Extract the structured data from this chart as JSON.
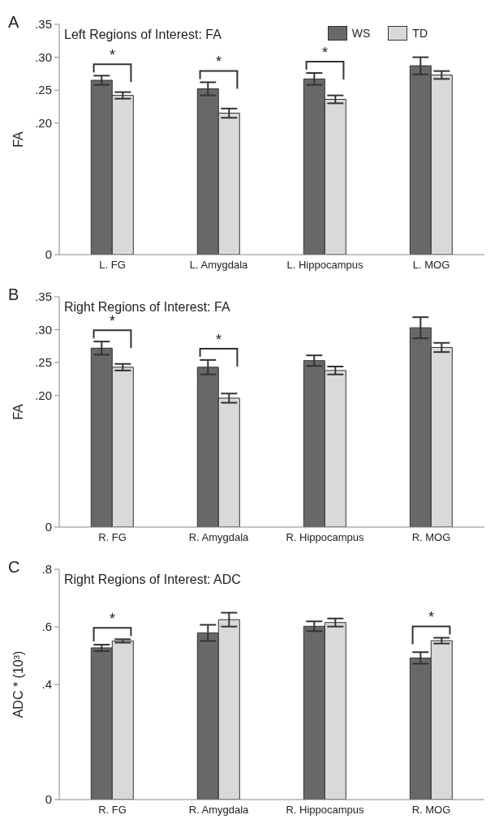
{
  "chart_data": [
    {
      "type": "bar",
      "title": "Left Regions of Interest: FA",
      "ylabel": "FA",
      "categories": [
        "L. FG",
        "L. Amygdala",
        "L. Hippocampus",
        "L. MOG"
      ],
      "series": [
        {
          "name": "WS",
          "color": "#686868",
          "values": [
            0.265,
            0.252,
            0.267,
            0.287
          ],
          "errors": [
            0.007,
            0.01,
            0.009,
            0.013
          ]
        },
        {
          "name": "TD",
          "color": "#d9d9d9",
          "values": [
            0.242,
            0.215,
            0.236,
            0.273
          ],
          "errors": [
            0.005,
            0.007,
            0.006,
            0.006
          ]
        }
      ],
      "ylim": [
        0,
        0.35
      ],
      "yticks": [
        {
          "value": 0,
          "label": "0"
        },
        {
          "value": 0.2,
          "label": ".20"
        },
        {
          "value": 0.25,
          "label": ".25"
        },
        {
          "value": 0.3,
          "label": ".30"
        },
        {
          "value": 0.35,
          "label": ".35"
        }
      ],
      "legend": "top right",
      "grid": false,
      "annotations": [
        "A",
        {
          "text": "*",
          "x": "L. FG",
          "y": 0.265
        },
        {
          "text": "*",
          "x": "L. Amygdala",
          "y": 0.252
        },
        {
          "text": "*",
          "x": "L. Hippocampus",
          "y": 0.267
        }
      ]
    },
    {
      "type": "bar",
      "title": "Right Regions of Interest: FA",
      "ylabel": "FA",
      "categories": [
        "R. FG",
        "R. Amygdala",
        "R. Hippocampus",
        "R. MOG"
      ],
      "series": [
        {
          "color": "#686868",
          "values": [
            0.272,
            0.243,
            0.253,
            0.303
          ],
          "errors": [
            0.01,
            0.011,
            0.008,
            0.016
          ]
        },
        {
          "color": "#d9d9d9",
          "values": [
            0.243,
            0.196,
            0.238,
            0.273
          ],
          "errors": [
            0.005,
            0.007,
            0.006,
            0.007
          ]
        }
      ],
      "ylim": [
        0,
        0.35
      ],
      "yticks": [
        {
          "value": 0,
          "label": "0"
        },
        {
          "value": 0.2,
          "label": ".20"
        },
        {
          "value": 0.25,
          "label": ".25"
        },
        {
          "value": 0.3,
          "label": ".30"
        },
        {
          "value": 0.35,
          "label": ".35"
        }
      ],
      "legend": false,
      "grid": false,
      "annotations": [
        "B",
        {
          "text": "*",
          "x": "R. FG",
          "y": 0.272
        },
        {
          "text": "*",
          "x": "R. Amygdala",
          "y": 0.243
        }
      ]
    },
    {
      "type": "bar",
      "title": "Right Regions of Interest: ADC",
      "ylabel": "ADC * (10³)",
      "categories": [
        "R. FG",
        "R. Amygdala",
        "R. Hippocampus",
        "R. MOG"
      ],
      "series": [
        {
          "color": "#686868",
          "values": [
            0.527,
            0.579,
            0.602,
            0.492
          ],
          "errors": [
            0.011,
            0.028,
            0.017,
            0.02
          ]
        },
        {
          "color": "#d9d9d9",
          "values": [
            0.551,
            0.625,
            0.615,
            0.552
          ],
          "errors": [
            0.006,
            0.024,
            0.014,
            0.01
          ]
        }
      ],
      "ylim": [
        0,
        0.8
      ],
      "yticks": [
        {
          "value": 0,
          "label": "0"
        },
        {
          "value": 0.4,
          "label": ".4"
        },
        {
          "value": 0.6,
          "label": ".6"
        },
        {
          "value": 0.8,
          "label": ".8"
        }
      ],
      "legend": false,
      "grid": false,
      "annotations": [
        "C",
        {
          "text": "*",
          "x": "R. FG",
          "y": 0.527
        },
        {
          "text": "*",
          "x": "R. MOG",
          "y": 0.492
        }
      ]
    }
  ]
}
